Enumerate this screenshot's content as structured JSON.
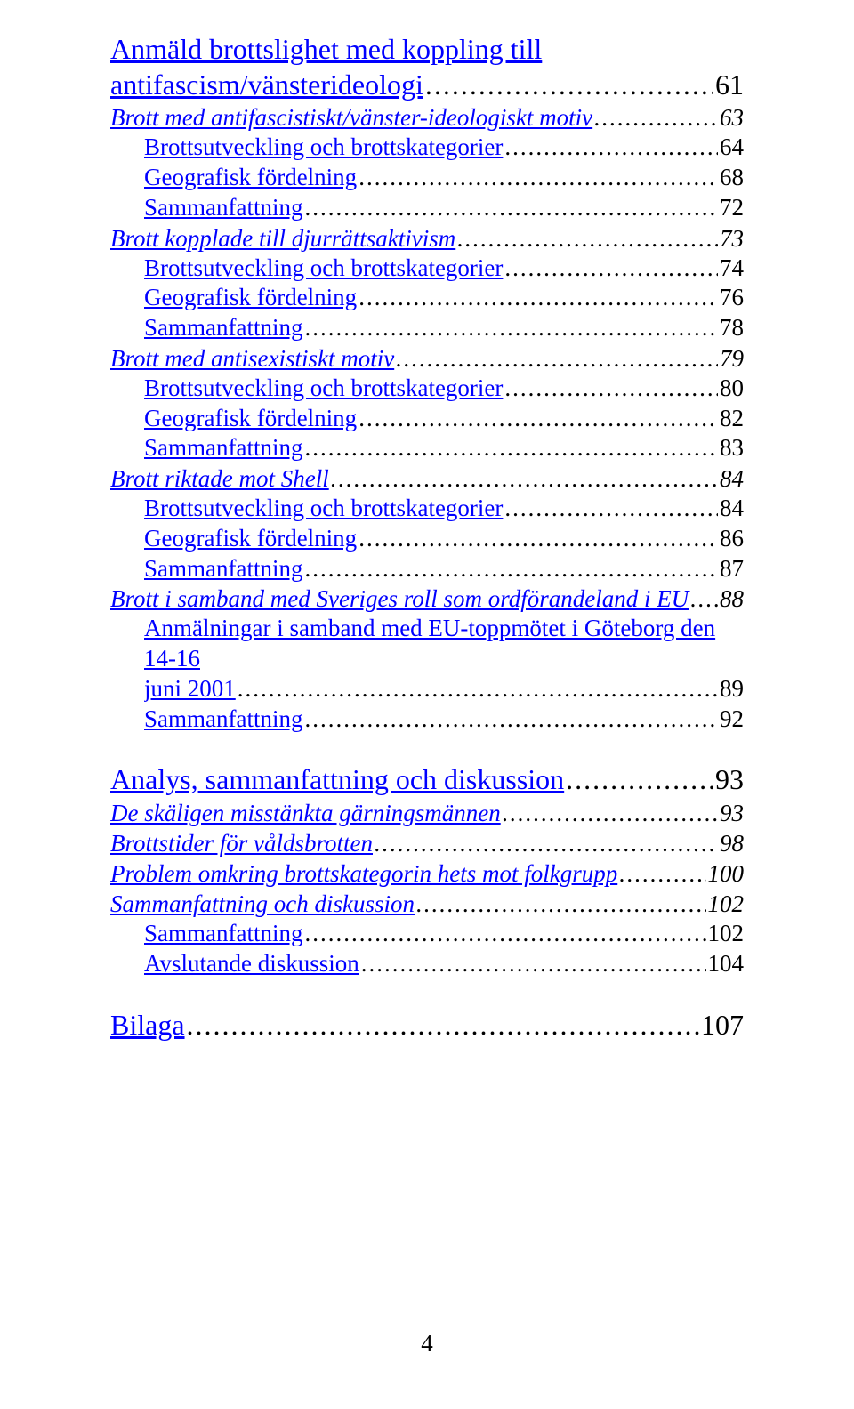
{
  "colors": {
    "link": "#0000ff",
    "text": "#000000",
    "background": "#ffffff"
  },
  "typography": {
    "family": "Times New Roman",
    "lvl1_fontsize": 32,
    "lvl2_fontsize": 27,
    "lvl3_fontsize": 27,
    "lvl2_italic": true
  },
  "page_footer": "4",
  "heading1_line1": "Anmäld brottslighet med koppling till",
  "heading1_line2": "antifascism/vänsterideologi",
  "heading1_page": "61",
  "entries": [
    {
      "level": 2,
      "label": "Brott med antifascistiskt/vänster-ideologiskt motiv",
      "page": "63"
    },
    {
      "level": 3,
      "label": "Brottsutveckling och brottskategorier",
      "page": "64"
    },
    {
      "level": 3,
      "label": "Geografisk fördelning",
      "page": "68"
    },
    {
      "level": 3,
      "label": "Sammanfattning",
      "page": "72"
    },
    {
      "level": 2,
      "label": "Brott kopplade till djurrättsaktivism",
      "page": "73"
    },
    {
      "level": 3,
      "label": "Brottsutveckling och brottskategorier",
      "page": "74"
    },
    {
      "level": 3,
      "label": "Geografisk fördelning",
      "page": "76"
    },
    {
      "level": 3,
      "label": "Sammanfattning",
      "page": "78"
    },
    {
      "level": 2,
      "label": "Brott med antisexistiskt motiv",
      "page": "79"
    },
    {
      "level": 3,
      "label": "Brottsutveckling och brottskategorier",
      "page": "80"
    },
    {
      "level": 3,
      "label": "Geografisk fördelning",
      "page": "82"
    },
    {
      "level": 3,
      "label": "Sammanfattning",
      "page": "83"
    },
    {
      "level": 2,
      "label": "Brott riktade mot Shell",
      "page": "84"
    },
    {
      "level": 3,
      "label": "Brottsutveckling och brottskategorier",
      "page": "84"
    },
    {
      "level": 3,
      "label": "Geografisk fördelning",
      "page": "86"
    },
    {
      "level": 3,
      "label": "Sammanfattning",
      "page": "87"
    },
    {
      "level": 2,
      "label": "Brott i samband med Sveriges roll som ordförandeland i EU",
      "page": "88"
    }
  ],
  "long_entry": {
    "line1": "Anmälningar i samband med EU-toppmötet i Göteborg den 14-16",
    "line2": "juni 2001",
    "page": "89"
  },
  "entries2": [
    {
      "level": 3,
      "label": "Sammanfattning",
      "page": "92"
    }
  ],
  "section2_heading": {
    "label": "Analys, sammanfattning och diskussion",
    "page": "93"
  },
  "section2_entries": [
    {
      "level": 2,
      "label": "De skäligen misstänkta gärningsmännen",
      "page": "93"
    },
    {
      "level": 2,
      "label": "Brottstider för våldsbrotten",
      "page": "98"
    },
    {
      "level": 2,
      "label": "Problem omkring brottskategorin hets mot folkgrupp",
      "page": "100"
    },
    {
      "level": 2,
      "label": "Sammanfattning och diskussion",
      "page": "102"
    },
    {
      "level": 3,
      "label": "Sammanfattning",
      "page": "102"
    },
    {
      "level": 3,
      "label": "Avslutande diskussion",
      "page": "104"
    }
  ],
  "section3": {
    "label": "Bilaga",
    "page": "107"
  }
}
